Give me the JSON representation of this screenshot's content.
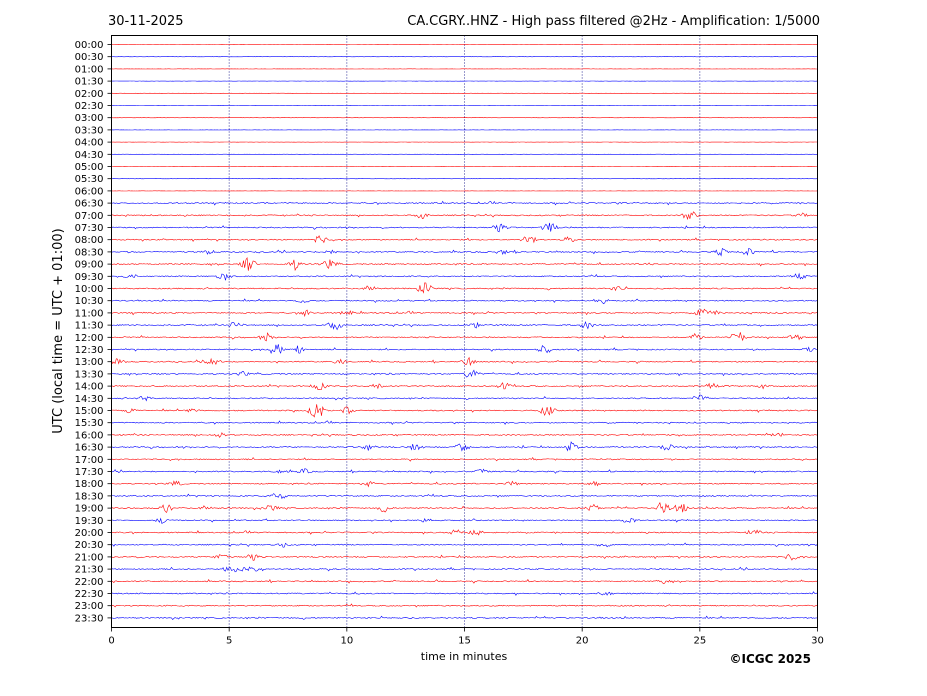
{
  "chart_data": {
    "type": "line",
    "date": "30-11-2025",
    "title": "CA.CGRY..HNZ - High pass filtered @2Hz - Amplification: 1/5000",
    "xlabel": "time in minutes",
    "ylabel": "UTC (local time = UTC + 01:00)",
    "copyright": "©ICGC 2025",
    "xlim": [
      0,
      30
    ],
    "x_ticks": [
      0,
      5,
      10,
      15,
      20,
      25,
      30
    ],
    "grid": "vertical dotted lines every 5 minutes",
    "colors": {
      "red_trace": "#ff0000",
      "blue_trace": "#0000ff",
      "grid": "#000080"
    },
    "rows": [
      {
        "label": "00:00",
        "color": "red",
        "events": []
      },
      {
        "label": "00:30",
        "color": "blue",
        "events": []
      },
      {
        "label": "01:00",
        "color": "red",
        "events": []
      },
      {
        "label": "01:30",
        "color": "blue",
        "events": []
      },
      {
        "label": "02:00",
        "color": "red",
        "events": []
      },
      {
        "label": "02:30",
        "color": "blue",
        "events": []
      },
      {
        "label": "03:00",
        "color": "red",
        "events": []
      },
      {
        "label": "03:30",
        "color": "blue",
        "events": []
      },
      {
        "label": "04:00",
        "color": "red",
        "events": []
      },
      {
        "label": "04:30",
        "color": "blue",
        "events": []
      },
      {
        "label": "05:00",
        "color": "red",
        "events": []
      },
      {
        "label": "05:30",
        "color": "blue",
        "events": []
      },
      {
        "label": "06:00",
        "color": "red",
        "events": []
      },
      {
        "label": "06:30",
        "color": "blue",
        "events": []
      },
      {
        "label": "07:00",
        "color": "red",
        "events": [
          [
            13.2,
            4
          ],
          [
            24.6,
            7
          ],
          [
            29.3,
            3
          ]
        ]
      },
      {
        "label": "07:30",
        "color": "blue",
        "events": [
          [
            16.5,
            5
          ],
          [
            18.6,
            6
          ]
        ]
      },
      {
        "label": "08:00",
        "color": "red",
        "events": [
          [
            8.9,
            5
          ],
          [
            17.7,
            6
          ],
          [
            19.4,
            3
          ]
        ]
      },
      {
        "label": "08:30",
        "color": "blue",
        "events": [
          [
            4.1,
            3
          ],
          [
            9.3,
            3
          ],
          [
            16.6,
            3
          ],
          [
            25.9,
            4
          ],
          [
            27.0,
            5
          ]
        ]
      },
      {
        "label": "09:00",
        "color": "red",
        "events": [
          [
            5.8,
            8
          ],
          [
            7.8,
            6
          ],
          [
            9.3,
            6
          ],
          [
            22.9,
            3
          ]
        ]
      },
      {
        "label": "09:30",
        "color": "blue",
        "events": [
          [
            0.8,
            3
          ],
          [
            4.8,
            6
          ],
          [
            29.2,
            4
          ]
        ]
      },
      {
        "label": "10:00",
        "color": "red",
        "events": [
          [
            11.0,
            4
          ],
          [
            13.3,
            7
          ],
          [
            21.5,
            3
          ]
        ]
      },
      {
        "label": "10:30",
        "color": "blue",
        "events": [
          [
            8.1,
            3
          ],
          [
            20.8,
            4
          ]
        ]
      },
      {
        "label": "11:00",
        "color": "red",
        "events": [
          [
            8.3,
            4
          ],
          [
            10.0,
            3
          ],
          [
            25.1,
            5
          ],
          [
            25.6,
            3
          ]
        ]
      },
      {
        "label": "11:30",
        "color": "blue",
        "events": [
          [
            5.3,
            4
          ],
          [
            9.5,
            6
          ],
          [
            15.5,
            3
          ],
          [
            20.2,
            4
          ]
        ]
      },
      {
        "label": "12:00",
        "color": "red",
        "events": [
          [
            6.6,
            5
          ],
          [
            24.8,
            4
          ],
          [
            26.6,
            7
          ],
          [
            29.1,
            4
          ]
        ]
      },
      {
        "label": "12:30",
        "color": "blue",
        "events": [
          [
            7.0,
            7
          ],
          [
            7.9,
            5
          ],
          [
            18.4,
            5
          ],
          [
            29.6,
            3
          ]
        ]
      },
      {
        "label": "13:00",
        "color": "red",
        "events": [
          [
            0.3,
            4
          ],
          [
            4.3,
            5
          ],
          [
            9.7,
            3
          ],
          [
            15.2,
            5
          ]
        ]
      },
      {
        "label": "13:30",
        "color": "blue",
        "events": [
          [
            5.6,
            3
          ],
          [
            15.3,
            6
          ]
        ]
      },
      {
        "label": "14:00",
        "color": "red",
        "events": [
          [
            8.8,
            6
          ],
          [
            11.3,
            4
          ],
          [
            16.7,
            4
          ],
          [
            25.5,
            4
          ],
          [
            27.7,
            3
          ]
        ]
      },
      {
        "label": "14:30",
        "color": "blue",
        "events": [
          [
            1.4,
            3
          ],
          [
            25.0,
            4
          ]
        ]
      },
      {
        "label": "15:00",
        "color": "red",
        "events": [
          [
            0.8,
            3
          ],
          [
            3.4,
            3
          ],
          [
            8.7,
            11
          ],
          [
            10.0,
            4
          ],
          [
            18.5,
            6
          ]
        ]
      },
      {
        "label": "15:30",
        "color": "blue",
        "events": []
      },
      {
        "label": "16:00",
        "color": "red",
        "events": [
          [
            4.6,
            3
          ],
          [
            28.3,
            3
          ]
        ]
      },
      {
        "label": "16:30",
        "color": "blue",
        "events": [
          [
            10.9,
            4
          ],
          [
            12.9,
            5
          ],
          [
            14.9,
            5
          ],
          [
            19.6,
            8
          ],
          [
            23.6,
            4
          ]
        ]
      },
      {
        "label": "17:00",
        "color": "red",
        "events": []
      },
      {
        "label": "17:30",
        "color": "blue",
        "events": [
          [
            7.2,
            3
          ],
          [
            8.2,
            3
          ],
          [
            15.8,
            4
          ]
        ]
      },
      {
        "label": "18:00",
        "color": "red",
        "events": [
          [
            2.7,
            4
          ],
          [
            10.9,
            3
          ],
          [
            17.0,
            3
          ],
          [
            20.5,
            3
          ]
        ]
      },
      {
        "label": "18:30",
        "color": "blue",
        "events": [
          [
            7.1,
            5
          ]
        ]
      },
      {
        "label": "19:00",
        "color": "red",
        "events": [
          [
            2.3,
            5
          ],
          [
            4.0,
            3
          ],
          [
            6.8,
            4
          ],
          [
            11.6,
            5
          ],
          [
            20.5,
            5
          ],
          [
            23.4,
            7
          ],
          [
            24.2,
            6
          ]
        ]
      },
      {
        "label": "19:30",
        "color": "blue",
        "events": [
          [
            2.2,
            4
          ],
          [
            13.3,
            3
          ],
          [
            22.0,
            4
          ]
        ]
      },
      {
        "label": "20:00",
        "color": "red",
        "events": [
          [
            14.7,
            5
          ],
          [
            15.5,
            4
          ],
          [
            27.3,
            4
          ]
        ]
      },
      {
        "label": "20:30",
        "color": "blue",
        "events": [
          [
            7.3,
            3
          ],
          [
            21.0,
            3
          ]
        ]
      },
      {
        "label": "21:00",
        "color": "red",
        "events": [
          [
            4.7,
            4
          ],
          [
            6.0,
            4
          ],
          [
            28.9,
            5
          ]
        ]
      },
      {
        "label": "21:30",
        "color": "blue",
        "events": [
          [
            5.1,
            5
          ],
          [
            5.7,
            4
          ],
          [
            6.2,
            4
          ]
        ]
      },
      {
        "label": "22:00",
        "color": "red",
        "events": [
          [
            23.4,
            3
          ]
        ]
      },
      {
        "label": "22:30",
        "color": "blue",
        "events": [
          [
            21.0,
            3
          ]
        ]
      },
      {
        "label": "23:00",
        "color": "red",
        "events": []
      },
      {
        "label": "23:30",
        "color": "blue",
        "events": []
      }
    ]
  }
}
